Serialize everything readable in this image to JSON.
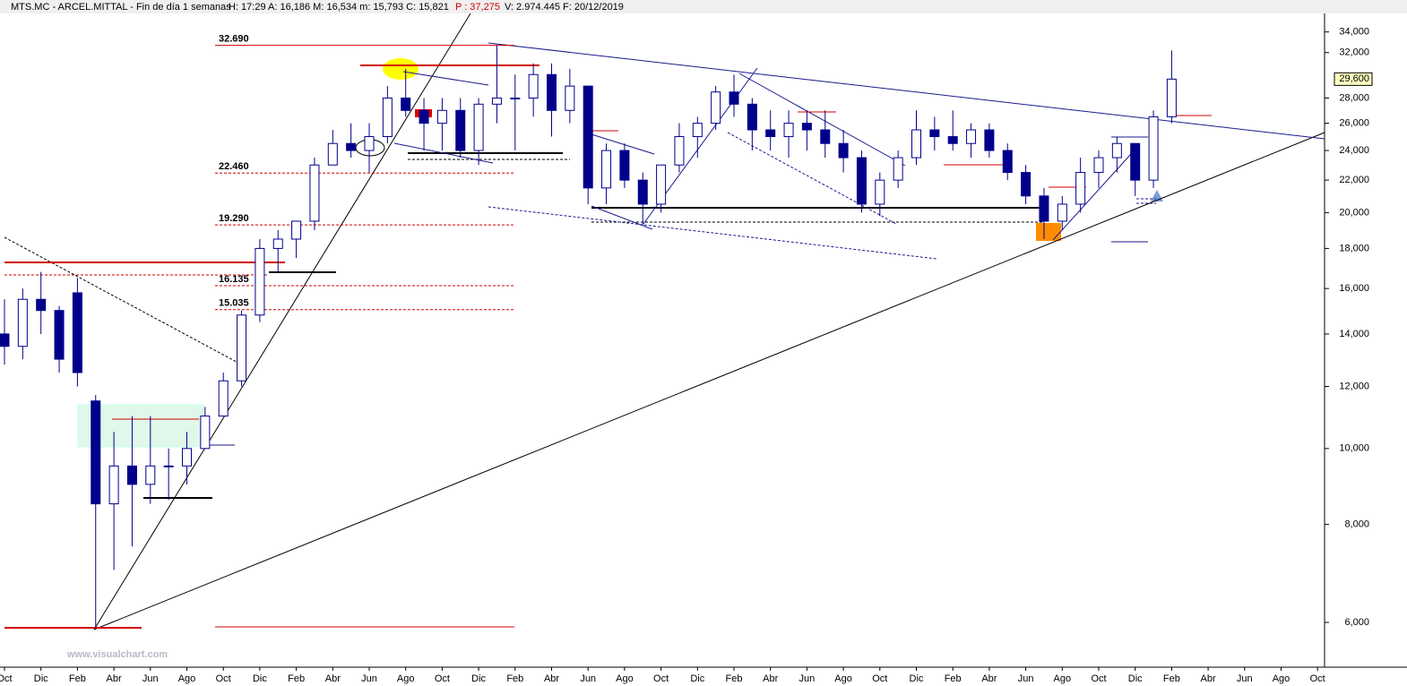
{
  "chart_data": {
    "type": "candlestick",
    "header": {
      "title": "MTS.MC - ARCEL.MITTAL - Fin de día 1 semanas",
      "stats": "H: 17:29  A: 16,186  M: 16,534  m: 15,793  C: 15,821",
      "p": "P : 37,275",
      "volume": "V: 2.974.445  F: 20/12/2019"
    },
    "watermark": "www.visualchart.com",
    "log_scale": true,
    "grid": false,
    "color": "#00008b",
    "categories": [
      "Oct",
      null,
      "Dic",
      null,
      "Feb",
      null,
      "Abr",
      null,
      "Jun",
      null,
      "Ago",
      null,
      "Oct",
      null,
      "Dic",
      null,
      "Feb",
      null,
      "Abr",
      null,
      "Jun",
      null,
      "Ago",
      null,
      "Oct",
      null,
      "Dic",
      null,
      "Feb",
      null,
      "Abr",
      null,
      "Jun",
      null,
      "Ago",
      null,
      "Oct",
      null,
      "Dic",
      null,
      "Feb",
      null,
      "Abr",
      null,
      "Jun",
      null,
      "Ago",
      null,
      "Oct",
      null,
      "Dic",
      null,
      "Feb",
      null,
      "Abr",
      null,
      "Jun",
      null,
      "Ago",
      null,
      "Oct",
      null,
      "Dic",
      null,
      "Feb",
      null,
      "Abr",
      null,
      "Jun",
      null,
      "Ago",
      null,
      "Oct"
    ],
    "open": [
      14000,
      13500,
      15500,
      15000,
      15800,
      11500,
      8500,
      9500,
      9000,
      9500,
      9500,
      10000,
      11000,
      12200,
      14800,
      18000,
      18500,
      19500,
      23000,
      24500,
      24000,
      25000,
      28000,
      27000,
      26000,
      27000,
      24000,
      27500,
      28000,
      28000,
      30000,
      27000,
      29000,
      21500,
      24000,
      22000,
      20500,
      23000,
      25000,
      26000,
      28500,
      27500,
      25500,
      25000,
      26000,
      25500,
      24500,
      23500,
      20500,
      22000,
      23500,
      25500,
      25000,
      24500,
      25500,
      24000,
      22500,
      21000,
      19500,
      20500,
      22500,
      23500,
      24500,
      22000,
      26500,
      null,
      null,
      null,
      null,
      null,
      null,
      null,
      null
    ],
    "high": [
      15500,
      16000,
      16800,
      15200,
      16500,
      11700,
      10500,
      11000,
      11000,
      10000,
      10500,
      11300,
      12500,
      15000,
      18500,
      19000,
      19500,
      23500,
      25500,
      26000,
      26000,
      29000,
      30500,
      28000,
      28000,
      28000,
      28000,
      32690,
      30000,
      31000,
      31000,
      30500,
      29000,
      24500,
      24500,
      22500,
      23000,
      26000,
      26500,
      29000,
      30000,
      28000,
      27000,
      27000,
      27000,
      27000,
      25500,
      24000,
      22500,
      24000,
      27000,
      26500,
      27000,
      26000,
      26000,
      24500,
      23000,
      21500,
      21000,
      23500,
      24000,
      25000,
      24500,
      27000,
      32200,
      null,
      null,
      null,
      null,
      null,
      null,
      null,
      null
    ],
    "low": [
      12800,
      13000,
      14000,
      12500,
      12000,
      5900,
      7000,
      7500,
      8500,
      8600,
      9000,
      10000,
      11000,
      12000,
      14500,
      16800,
      17500,
      19000,
      23000,
      23500,
      22500,
      24500,
      26500,
      24000,
      24000,
      23500,
      23000,
      26000,
      24000,
      26500,
      25000,
      26000,
      20500,
      20500,
      21500,
      19300,
      20000,
      22500,
      23500,
      25500,
      26500,
      24000,
      24000,
      23500,
      24000,
      23500,
      22500,
      20000,
      19800,
      21500,
      23000,
      24000,
      24000,
      23500,
      23500,
      22000,
      20500,
      18500,
      19000,
      20000,
      21500,
      22500,
      21000,
      21500,
      26000,
      null,
      null,
      null,
      null,
      null,
      null,
      null,
      null
    ],
    "close": [
      13500,
      15500,
      15000,
      13000,
      12500,
      8500,
      9500,
      9000,
      9500,
      9500,
      10000,
      11000,
      12200,
      14800,
      18000,
      18500,
      19500,
      23000,
      24500,
      24000,
      25000,
      28000,
      27000,
      26000,
      27000,
      24000,
      27500,
      28000,
      28000,
      30000,
      27000,
      29000,
      21500,
      24000,
      22000,
      20500,
      23000,
      25000,
      26000,
      28500,
      27500,
      25500,
      25000,
      26000,
      25500,
      24500,
      23500,
      20500,
      22000,
      23500,
      25500,
      25000,
      24500,
      25500,
      24000,
      22500,
      21000,
      19500,
      20500,
      22500,
      23500,
      24500,
      22000,
      26500,
      29600,
      null,
      null,
      null,
      null,
      null,
      null,
      null,
      null
    ],
    "ylim": [
      5260,
      35900
    ],
    "yticks": [
      {
        "value": 6000,
        "label": "6,000"
      },
      {
        "value": 8000,
        "label": "8,000"
      },
      {
        "value": 10000,
        "label": "10,000"
      },
      {
        "value": 12000,
        "label": "12,000"
      },
      {
        "value": 14000,
        "label": "14,000"
      },
      {
        "value": 16000,
        "label": "16,000"
      },
      {
        "value": 18000,
        "label": "18,000"
      },
      {
        "value": 20000,
        "label": "20,000"
      },
      {
        "value": 22000,
        "label": "22,000"
      },
      {
        "value": 24000,
        "label": "24,000"
      },
      {
        "value": 26000,
        "label": "26,000"
      },
      {
        "value": 28000,
        "label": "28,000"
      },
      {
        "value": 32000,
        "label": "32,000"
      },
      {
        "value": 34000,
        "label": "34,000"
      }
    ],
    "levels": [
      {
        "value": 32690,
        "label": "32.690"
      },
      {
        "value": 22460,
        "label": "22.460"
      },
      {
        "value": 19290,
        "label": "19.290"
      },
      {
        "value": 16135,
        "label": "16.135"
      },
      {
        "value": 15035,
        "label": "15.035"
      }
    ],
    "last_price": {
      "value": 29600,
      "label": "29,600"
    }
  }
}
